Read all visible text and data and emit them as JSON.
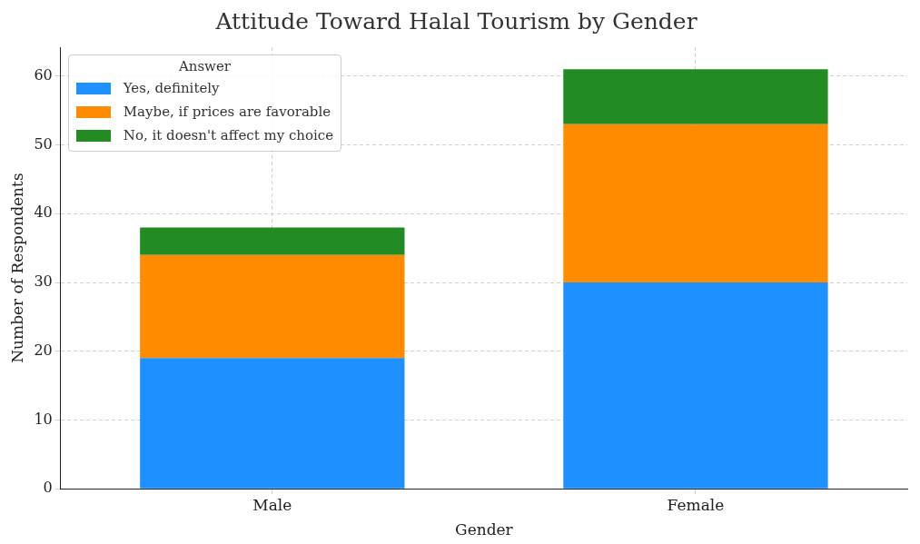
{
  "chart_data": {
    "type": "bar",
    "title": "Attitude Toward Halal Tourism by Gender",
    "xlabel": "Gender",
    "ylabel": "Number of Respondents",
    "legend_title": "Answer",
    "categories": [
      "Male",
      "Female"
    ],
    "stacked": true,
    "series": [
      {
        "name": "Yes, definitely",
        "color": "#1e90ff",
        "values": [
          19,
          30
        ]
      },
      {
        "name": "Maybe, if prices are favorable",
        "color": "#ff8c00",
        "values": [
          15,
          23
        ]
      },
      {
        "name": "No, it doesn't affect my choice",
        "color": "#228b22",
        "values": [
          4,
          8
        ]
      }
    ],
    "ylim": [
      0,
      64.2
    ],
    "yticks": [
      0,
      10,
      20,
      30,
      40,
      50,
      60
    ],
    "grid": true,
    "legend": "top left"
  }
}
